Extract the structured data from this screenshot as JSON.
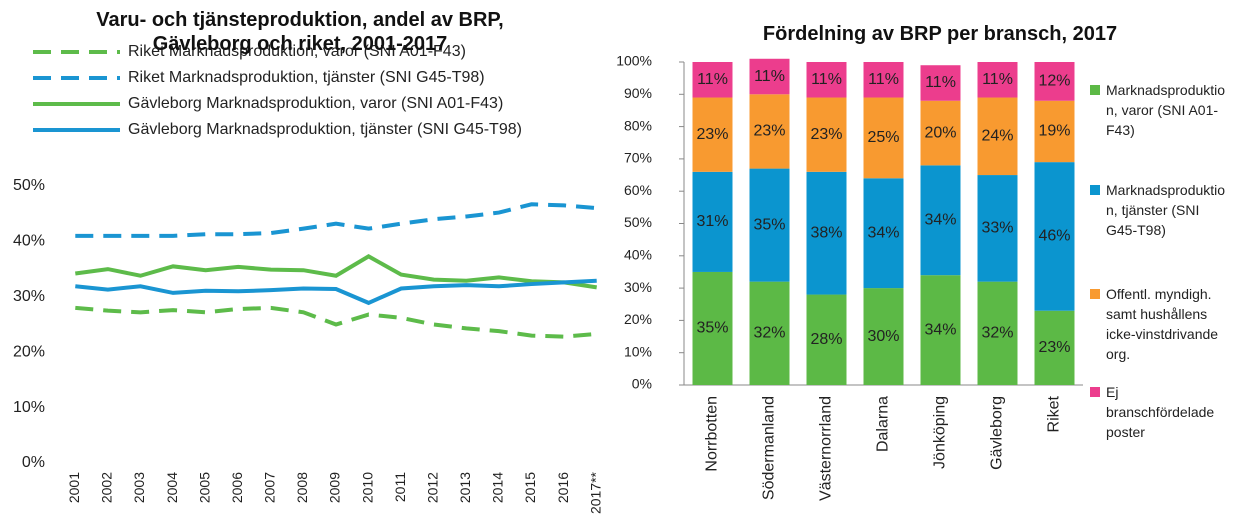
{
  "chart_data": [
    {
      "type": "line",
      "title": "Varu- och tjänsteproduktion, andel av BRP, Gävleborg och riket, 2001-2017",
      "categories": [
        "2001",
        "2002",
        "2003",
        "2004",
        "2005",
        "2006",
        "2007",
        "2008",
        "2009",
        "2010",
        "2011",
        "2012",
        "2013",
        "2014",
        "2015",
        "2016",
        "2017**"
      ],
      "series": [
        {
          "name": "Riket Marknadsproduktion, varor (SNI A01-F43)",
          "color": "#5dbb4a",
          "style": "dashed",
          "values": [
            28.0,
            27.5,
            27.2,
            27.6,
            27.2,
            27.8,
            28.0,
            27.2,
            25.0,
            26.8,
            26.2,
            25.0,
            24.3,
            23.8,
            23.0,
            22.8,
            23.3
          ]
        },
        {
          "name": "Riket Marknadsproduktion, tjänster (SNI G45-T98)",
          "color": "#1a95d2",
          "style": "dashed",
          "values": [
            41.0,
            41.0,
            41.0,
            41.0,
            41.3,
            41.3,
            41.5,
            42.3,
            43.2,
            42.3,
            43.2,
            44.0,
            44.5,
            45.2,
            46.7,
            46.5,
            46.0
          ]
        },
        {
          "name": "Gävleborg Marknadsproduktion, varor (SNI A01-F43)",
          "color": "#5dbb4a",
          "style": "solid",
          "values": [
            34.2,
            35.0,
            33.8,
            35.5,
            34.8,
            35.4,
            34.9,
            34.8,
            33.8,
            37.3,
            34.0,
            33.1,
            32.9,
            33.5,
            32.8,
            32.6,
            31.7
          ]
        },
        {
          "name": "Gävleborg Marknadsproduktion, tjänster (SNI G45-T98)",
          "color": "#1a95d2",
          "style": "solid",
          "values": [
            31.9,
            31.3,
            31.9,
            30.7,
            31.1,
            31.0,
            31.2,
            31.5,
            31.4,
            28.9,
            31.5,
            31.9,
            32.1,
            31.9,
            32.3,
            32.6,
            32.9
          ]
        }
      ],
      "ylim": [
        0,
        50
      ],
      "yticks": [
        {
          "value": 0,
          "label": "0%"
        },
        {
          "value": 10,
          "label": "10%"
        },
        {
          "value": 20,
          "label": "20%"
        },
        {
          "value": 30,
          "label": "30%"
        },
        {
          "value": 40,
          "label": "40%"
        },
        {
          "value": 50,
          "label": "50%"
        }
      ],
      "grid": false,
      "legend": "top"
    },
    {
      "type": "stacked_bar",
      "title": "Fördelning av BRP per bransch, 2017",
      "categories": [
        "Norrbotten",
        "Södermanland",
        "Västernorrland",
        "Dalarna",
        "Jönköping",
        "Gävleborg",
        "Riket"
      ],
      "series": [
        {
          "name": "Marknadsproduktion, varor (SNI A01-F43)",
          "color": "#5cb946",
          "values": [
            35,
            32,
            28,
            30,
            34,
            32,
            23
          ],
          "value_labels": [
            "35%",
            "32%",
            "28%",
            "30%",
            "34%",
            "32%",
            "23%"
          ]
        },
        {
          "name": "Marknadsproduktion, tjänster (SNI G45-T98)",
          "color": "#0b95cf",
          "values": [
            31,
            35,
            38,
            34,
            34,
            33,
            46
          ],
          "value_labels": [
            "31%",
            "35%",
            "38%",
            "34%",
            "34%",
            "33%",
            "46%"
          ]
        },
        {
          "name": "Offentl. myndigh. samt hushållens icke-vinstdrivande org.",
          "color": "#f89a30",
          "values": [
            23,
            23,
            23,
            25,
            20,
            24,
            19
          ],
          "value_labels": [
            "23%",
            "23%",
            "23%",
            "25%",
            "20%",
            "24%",
            "19%"
          ]
        },
        {
          "name": "Ej branschfördelade poster",
          "color": "#ec3d8d",
          "values": [
            11,
            11,
            11,
            11,
            11,
            11,
            12
          ],
          "value_labels": [
            "11%",
            "11%",
            "11%",
            "11%",
            "11%",
            "11%",
            "12%"
          ]
        }
      ],
      "ylim": [
        0,
        100
      ],
      "yticks": [
        {
          "value": 0,
          "label": "0%"
        },
        {
          "value": 10,
          "label": "10%"
        },
        {
          "value": 20,
          "label": "20%"
        },
        {
          "value": 30,
          "label": "30%"
        },
        {
          "value": 40,
          "label": "40%"
        },
        {
          "value": 50,
          "label": "50%"
        },
        {
          "value": 60,
          "label": "60%"
        },
        {
          "value": 70,
          "label": "70%"
        },
        {
          "value": 80,
          "label": "80%"
        },
        {
          "value": 90,
          "label": "90%"
        },
        {
          "value": 100,
          "label": "100%"
        }
      ],
      "grid": false,
      "legend": "right"
    }
  ]
}
